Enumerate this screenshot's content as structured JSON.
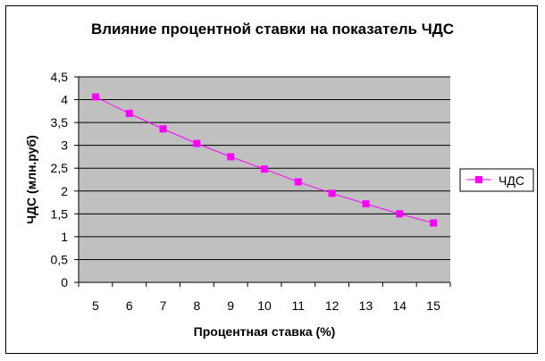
{
  "chart_data": {
    "type": "line",
    "title": "Влияние процентной ставки на показатель ЧДС",
    "xlabel": "Процентная ставка (%)",
    "ylabel": "ЧДС (млн.руб)",
    "categories": [
      "5",
      "6",
      "7",
      "8",
      "9",
      "10",
      "11",
      "12",
      "13",
      "14",
      "15"
    ],
    "series": [
      {
        "name": "ЧДС",
        "values": [
          4.06,
          3.7,
          3.36,
          3.04,
          2.75,
          2.48,
          2.2,
          1.95,
          1.72,
          1.5,
          1.3
        ]
      }
    ],
    "ylim": [
      0,
      4.5
    ],
    "yticks": [
      "0",
      "0,5",
      "1",
      "1,5",
      "2",
      "2,5",
      "3",
      "3,5",
      "4",
      "4,5"
    ],
    "grid": true,
    "legend_position": "right",
    "colors": {
      "plot_area": "#c0c0c0",
      "series": "#ff00ff",
      "grid": "#000000"
    }
  }
}
